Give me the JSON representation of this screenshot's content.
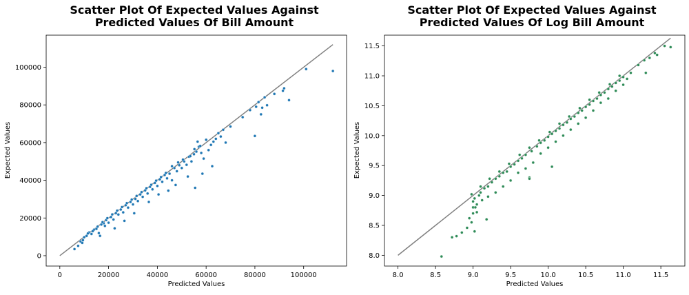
{
  "chart_data": [
    {
      "type": "scatter",
      "title_line1": "Scatter Plot Of Expected Values Against",
      "title_line2": "Predicted Values Of Bill Amount",
      "xlabel": "Predicted Values",
      "ylabel": "Expected Values",
      "xlim": [
        -5600,
        117600
      ],
      "ylim": [
        -5500,
        117000
      ],
      "xticks": [
        0,
        20000,
        40000,
        60000,
        80000,
        100000
      ],
      "xtick_labels": [
        "0",
        "20000",
        "40000",
        "60000",
        "80000",
        "100000"
      ],
      "yticks": [
        0,
        20000,
        40000,
        60000,
        80000,
        100000
      ],
      "ytick_labels": [
        "0",
        "20000",
        "40000",
        "60000",
        "80000",
        "100000"
      ],
      "grid": false,
      "point_color": "#1f77b4",
      "line_color": "#808080",
      "reference_line": [
        [
          0,
          0
        ],
        [
          112000,
          112000
        ]
      ],
      "points": [
        [
          6000,
          3500
        ],
        [
          7500,
          5200
        ],
        [
          8500,
          7500
        ],
        [
          9200,
          6800
        ],
        [
          10000,
          9800
        ],
        [
          11000,
          10500
        ],
        [
          12000,
          12300
        ],
        [
          13000,
          11500
        ],
        [
          14000,
          13800
        ],
        [
          15000,
          14200
        ],
        [
          16000,
          12000
        ],
        [
          17000,
          16500
        ],
        [
          18000,
          17200
        ],
        [
          18500,
          15800
        ],
        [
          19000,
          18900
        ],
        [
          20000,
          17500
        ],
        [
          21000,
          20500
        ],
        [
          22000,
          19200
        ],
        [
          23000,
          22600
        ],
        [
          24000,
          21800
        ],
        [
          25000,
          24500
        ],
        [
          26000,
          23000
        ],
        [
          27000,
          26800
        ],
        [
          28000,
          25500
        ],
        [
          29000,
          28500
        ],
        [
          30000,
          27200
        ],
        [
          31000,
          30100
        ],
        [
          32000,
          29000
        ],
        [
          33000,
          32500
        ],
        [
          34000,
          31200
        ],
        [
          35000,
          34600
        ],
        [
          36000,
          33000
        ],
        [
          37000,
          36500
        ],
        [
          38000,
          35200
        ],
        [
          39000,
          38600
        ],
        [
          40000,
          37000
        ],
        [
          41000,
          40500
        ],
        [
          42000,
          39200
        ],
        [
          43000,
          42800
        ],
        [
          44000,
          41000
        ],
        [
          45000,
          43500
        ],
        [
          46000,
          40000
        ],
        [
          47000,
          46500
        ],
        [
          48000,
          44800
        ],
        [
          49000,
          48000
        ],
        [
          50000,
          46500
        ],
        [
          51000,
          50000
        ],
        [
          52000,
          48200
        ],
        [
          53000,
          52500
        ],
        [
          54000,
          50000
        ],
        [
          55000,
          53800
        ],
        [
          56000,
          55200
        ],
        [
          56500,
          60500
        ],
        [
          57000,
          57800
        ],
        [
          58000,
          54500
        ],
        [
          59000,
          51500
        ],
        [
          60000,
          61500
        ],
        [
          61000,
          56000
        ],
        [
          62000,
          58800
        ],
        [
          63000,
          60500
        ],
        [
          64000,
          62000
        ],
        [
          65000,
          65000
        ],
        [
          66000,
          63200
        ],
        [
          67000,
          66800
        ],
        [
          68000,
          60000
        ],
        [
          70000,
          68500
        ],
        [
          75000,
          73500
        ],
        [
          78000,
          77200
        ],
        [
          80000,
          63500
        ],
        [
          80500,
          79000
        ],
        [
          81500,
          81500
        ],
        [
          82500,
          75000
        ],
        [
          83000,
          78500
        ],
        [
          84000,
          84000
        ],
        [
          85000,
          79800
        ],
        [
          88000,
          85800
        ],
        [
          91500,
          87500
        ],
        [
          92000,
          88800
        ],
        [
          94000,
          82500
        ],
        [
          101000,
          99000
        ],
        [
          112000,
          98000
        ],
        [
          9500,
          8200
        ],
        [
          11500,
          11800
        ],
        [
          13500,
          13000
        ],
        [
          15500,
          15400
        ],
        [
          17500,
          17800
        ],
        [
          19500,
          19900
        ],
        [
          21500,
          21900
        ],
        [
          23500,
          23900
        ],
        [
          25500,
          25800
        ],
        [
          27500,
          27900
        ],
        [
          29500,
          29800
        ],
        [
          31500,
          31700
        ],
        [
          33500,
          33700
        ],
        [
          35500,
          35800
        ],
        [
          37500,
          37600
        ],
        [
          39500,
          39800
        ],
        [
          41500,
          41700
        ],
        [
          43500,
          43900
        ],
        [
          16500,
          10500
        ],
        [
          22500,
          14500
        ],
        [
          26500,
          18500
        ],
        [
          30500,
          22500
        ],
        [
          36500,
          28500
        ],
        [
          40500,
          32500
        ],
        [
          44500,
          34500
        ],
        [
          47500,
          37500
        ],
        [
          52500,
          42000
        ],
        [
          55500,
          36000
        ],
        [
          58500,
          43500
        ],
        [
          62500,
          47500
        ],
        [
          53500,
          52800
        ],
        [
          55200,
          56500
        ],
        [
          57600,
          58200
        ],
        [
          46000,
          47500
        ],
        [
          48500,
          49500
        ],
        [
          50500,
          51000
        ]
      ]
    },
    {
      "type": "scatter",
      "title_line1": "Scatter Plot Of Expected Values Against",
      "title_line2": "Predicted Values Of Log Bill Amount",
      "xlabel": "Predicted Values",
      "ylabel": "Expected Values",
      "xlim": [
        7.82,
        11.82
      ],
      "ylim": [
        7.82,
        11.68
      ],
      "xticks": [
        8.0,
        8.5,
        9.0,
        9.5,
        10.0,
        10.5,
        11.0,
        11.5
      ],
      "xtick_labels": [
        "8.0",
        "8.5",
        "9.0",
        "9.5",
        "10.0",
        "10.5",
        "11.0",
        "11.5"
      ],
      "yticks": [
        8.0,
        8.5,
        9.0,
        9.5,
        10.0,
        10.5,
        11.0,
        11.5
      ],
      "ytick_labels": [
        "8.0",
        "8.5",
        "9.0",
        "9.5",
        "10.0",
        "10.5",
        "11.0",
        "11.5"
      ],
      "grid": false,
      "point_color": "#2e8b57",
      "line_color": "#808080",
      "reference_line": [
        [
          8.0,
          8.0
        ],
        [
          11.63,
          11.63
        ]
      ],
      "points": [
        [
          8.58,
          7.98
        ],
        [
          8.72,
          8.3
        ],
        [
          8.78,
          8.32
        ],
        [
          8.85,
          8.38
        ],
        [
          8.92,
          8.46
        ],
        [
          8.95,
          8.62
        ],
        [
          9.0,
          8.7
        ],
        [
          9.02,
          8.95
        ],
        [
          9.05,
          8.85
        ],
        [
          9.08,
          9.0
        ],
        [
          9.1,
          9.05
        ],
        [
          9.15,
          9.12
        ],
        [
          9.18,
          8.6
        ],
        [
          9.2,
          9.15
        ],
        [
          9.25,
          9.22
        ],
        [
          9.3,
          9.28
        ],
        [
          9.35,
          9.32
        ],
        [
          9.4,
          9.38
        ],
        [
          9.45,
          9.4
        ],
        [
          9.5,
          9.48
        ],
        [
          9.55,
          9.52
        ],
        [
          9.6,
          9.58
        ],
        [
          9.65,
          9.62
        ],
        [
          9.7,
          9.68
        ],
        [
          9.75,
          9.3
        ],
        [
          9.78,
          9.74
        ],
        [
          9.85,
          9.82
        ],
        [
          9.9,
          9.88
        ],
        [
          9.95,
          9.92
        ],
        [
          10.0,
          9.98
        ],
        [
          10.05,
          10.03
        ],
        [
          10.1,
          10.08
        ],
        [
          10.15,
          10.12
        ],
        [
          10.2,
          10.18
        ],
        [
          10.25,
          10.22
        ],
        [
          10.3,
          10.28
        ],
        [
          10.35,
          10.32
        ],
        [
          10.4,
          10.38
        ],
        [
          10.45,
          10.42
        ],
        [
          10.5,
          10.48
        ],
        [
          10.55,
          10.52
        ],
        [
          10.6,
          10.58
        ],
        [
          10.65,
          10.62
        ],
        [
          10.7,
          10.68
        ],
        [
          10.75,
          10.72
        ],
        [
          10.8,
          10.78
        ],
        [
          10.85,
          10.82
        ],
        [
          10.9,
          10.88
        ],
        [
          10.95,
          10.92
        ],
        [
          11.0,
          10.98
        ],
        [
          11.05,
          10.95
        ],
        [
          11.1,
          11.05
        ],
        [
          11.2,
          11.18
        ],
        [
          11.28,
          11.26
        ],
        [
          11.3,
          11.05
        ],
        [
          11.35,
          11.3
        ],
        [
          11.42,
          11.38
        ],
        [
          11.45,
          11.35
        ],
        [
          11.55,
          11.5
        ],
        [
          11.63,
          11.48
        ],
        [
          9.0,
          8.8
        ],
        [
          9.05,
          8.72
        ],
        [
          9.12,
          8.92
        ],
        [
          9.2,
          8.98
        ],
        [
          9.3,
          9.05
        ],
        [
          9.4,
          9.15
        ],
        [
          9.5,
          9.25
        ],
        [
          9.6,
          9.38
        ],
        [
          9.7,
          9.45
        ],
        [
          9.8,
          9.55
        ],
        [
          9.9,
          9.7
        ],
        [
          10.0,
          9.8
        ],
        [
          10.1,
          9.9
        ],
        [
          10.2,
          10.0
        ],
        [
          10.3,
          10.1
        ],
        [
          10.4,
          10.2
        ],
        [
          10.5,
          10.3
        ],
        [
          10.6,
          10.42
        ],
        [
          10.7,
          10.55
        ],
        [
          10.8,
          10.62
        ],
        [
          10.9,
          10.75
        ],
        [
          11.0,
          10.85
        ],
        [
          8.98,
          9.02
        ],
        [
          9.1,
          9.15
        ],
        [
          9.22,
          9.28
        ],
        [
          9.35,
          9.4
        ],
        [
          9.48,
          9.53
        ],
        [
          9.62,
          9.68
        ],
        [
          9.75,
          9.8
        ],
        [
          9.88,
          9.92
        ],
        [
          10.02,
          10.06
        ],
        [
          10.15,
          10.2
        ],
        [
          10.28,
          10.32
        ],
        [
          10.42,
          10.46
        ],
        [
          10.55,
          10.6
        ],
        [
          10.68,
          10.72
        ],
        [
          10.82,
          10.86
        ],
        [
          10.95,
          11.0
        ],
        [
          9.0,
          8.9
        ],
        [
          9.03,
          8.8
        ],
        [
          8.98,
          8.55
        ],
        [
          9.02,
          8.4
        ],
        [
          9.75,
          9.28
        ],
        [
          10.05,
          9.48
        ]
      ]
    }
  ]
}
